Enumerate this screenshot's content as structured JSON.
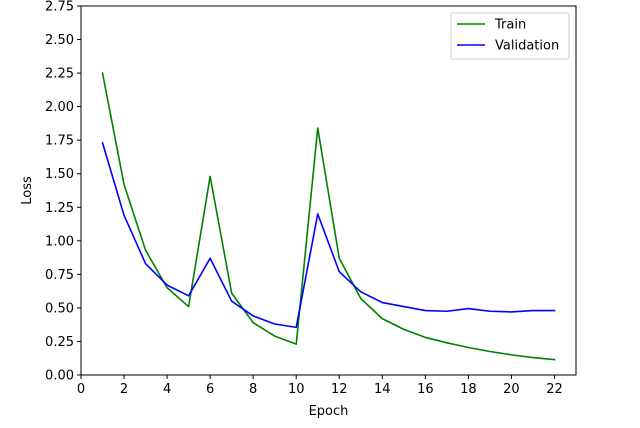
{
  "chart_data": {
    "type": "line",
    "xlabel": "Epoch",
    "ylabel": "Loss",
    "xlim": [
      0,
      23
    ],
    "ylim": [
      0,
      2.75
    ],
    "xticks": [
      0,
      2,
      4,
      6,
      8,
      10,
      12,
      14,
      16,
      18,
      20,
      22
    ],
    "yticks": [
      0.0,
      0.25,
      0.5,
      0.75,
      1.0,
      1.25,
      1.5,
      1.75,
      2.0,
      2.25,
      2.5,
      2.75
    ],
    "ytick_labels": [
      "0.00",
      "0.25",
      "0.50",
      "0.75",
      "1.00",
      "1.25",
      "1.50",
      "1.75",
      "2.00",
      "2.25",
      "2.50",
      "2.75"
    ],
    "legend_position": "top-right",
    "grid": false,
    "x": [
      1,
      2,
      3,
      4,
      5,
      6,
      7,
      8,
      9,
      10,
      11,
      12,
      13,
      14,
      15,
      16,
      17,
      18,
      19,
      20,
      21,
      22
    ],
    "series": [
      {
        "name": "Train",
        "color": "#008000",
        "values": [
          2.25,
          1.42,
          0.93,
          0.65,
          0.51,
          1.48,
          0.61,
          0.39,
          0.29,
          0.23,
          1.84,
          0.87,
          0.57,
          0.42,
          0.34,
          0.28,
          0.24,
          0.205,
          0.175,
          0.15,
          0.13,
          0.115
        ]
      },
      {
        "name": "Validation",
        "color": "#0000ff",
        "values": [
          1.73,
          1.19,
          0.83,
          0.67,
          0.59,
          0.87,
          0.55,
          0.44,
          0.38,
          0.355,
          1.2,
          0.77,
          0.62,
          0.54,
          0.51,
          0.48,
          0.475,
          0.495,
          0.475,
          0.47,
          0.48,
          0.48
        ]
      }
    ]
  }
}
